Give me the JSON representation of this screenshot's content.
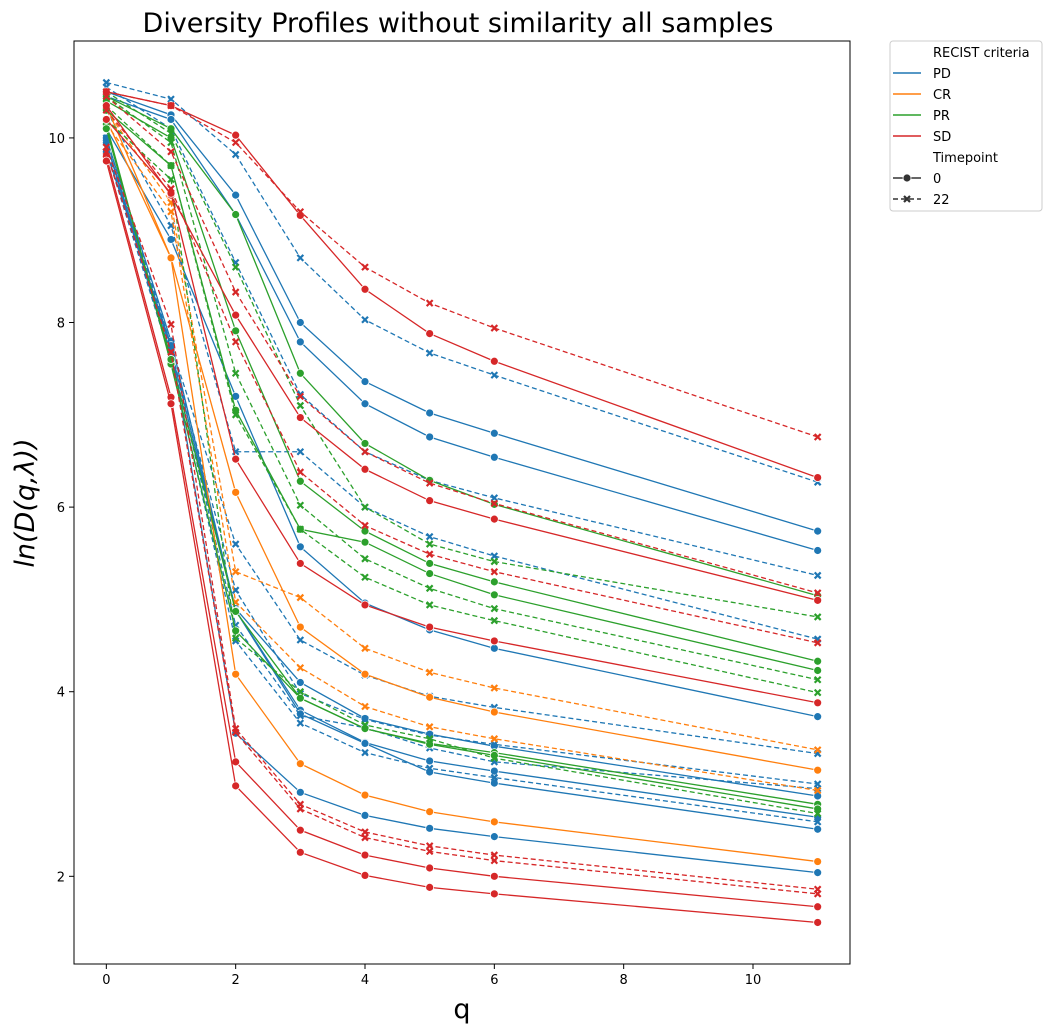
{
  "chart_data": {
    "type": "line",
    "title": "Diversity Profiles without similarity all samples",
    "xlabel": "q",
    "ylabel": "ln(D(q,λ))",
    "xlim": [
      -0.5,
      11.5
    ],
    "ylim": [
      1.05,
      11.05
    ],
    "xticks": [
      0,
      2,
      4,
      6,
      8,
      10
    ],
    "yticks": [
      2,
      4,
      6,
      8,
      10
    ],
    "x": [
      0,
      1,
      2,
      3,
      4,
      5,
      6,
      11
    ],
    "colors": {
      "PD": "#1f77b4",
      "CR": "#ff7f0e",
      "PR": "#2ca02c",
      "SD": "#d62728"
    },
    "legend": {
      "hue_title": "RECIST criteria",
      "hue_items": [
        {
          "key": "PD",
          "label": "PD"
        },
        {
          "key": "CR",
          "label": "CR"
        },
        {
          "key": "PR",
          "label": "PR"
        },
        {
          "key": "SD",
          "label": "SD"
        }
      ],
      "style_title": "Timepoint",
      "style_items": [
        {
          "key": "0",
          "label": "0",
          "marker": "circle",
          "dash": "solid"
        },
        {
          "key": "22",
          "label": "22",
          "marker": "x",
          "dash": "dashed"
        }
      ],
      "placement": "outside top-right"
    },
    "series": [
      {
        "name": "PD-0-a",
        "group": "PD",
        "timepoint": "0",
        "values": [
          10.5,
          10.25,
          9.38,
          8.0,
          7.36,
          7.02,
          6.8,
          5.74
        ]
      },
      {
        "name": "PD-0-b",
        "group": "PD",
        "timepoint": "0",
        "values": [
          10.45,
          10.2,
          9.17,
          7.79,
          7.12,
          6.76,
          6.54,
          5.53
        ]
      },
      {
        "name": "PD-0-c",
        "group": "PD",
        "timepoint": "0",
        "values": [
          10.1,
          8.9,
          7.2,
          5.57,
          4.96,
          4.67,
          4.47,
          3.73
        ]
      },
      {
        "name": "PD-0-d",
        "group": "PD",
        "timepoint": "0",
        "values": [
          9.95,
          7.6,
          4.9,
          4.1,
          3.71,
          3.54,
          3.41,
          2.87
        ]
      },
      {
        "name": "PD-0-e",
        "group": "PD",
        "timepoint": "0",
        "values": [
          9.95,
          7.7,
          4.88,
          3.8,
          3.45,
          3.25,
          3.14,
          2.64
        ]
      },
      {
        "name": "PD-0-f",
        "group": "PD",
        "timepoint": "0",
        "values": [
          10.0,
          7.8,
          4.88,
          3.76,
          3.44,
          3.13,
          3.01,
          2.51
        ]
      },
      {
        "name": "PD-0-g",
        "group": "PD",
        "timepoint": "0",
        "values": [
          9.85,
          7.75,
          3.55,
          2.91,
          2.66,
          2.52,
          2.43,
          2.04
        ]
      },
      {
        "name": "PD-22-a",
        "group": "PD",
        "timepoint": "22",
        "values": [
          10.6,
          10.42,
          9.82,
          8.7,
          8.03,
          7.67,
          7.43,
          6.27
        ]
      },
      {
        "name": "PD-22-b",
        "group": "PD",
        "timepoint": "22",
        "values": [
          10.55,
          10.1,
          8.65,
          7.22,
          6.6,
          6.29,
          6.1,
          5.26
        ]
      },
      {
        "name": "PD-22-c",
        "group": "PD",
        "timepoint": "22",
        "values": [
          10.3,
          9.05,
          6.6,
          6.6,
          6.0,
          5.68,
          5.47,
          4.57
        ]
      },
      {
        "name": "PD-22-d",
        "group": "PD",
        "timepoint": "22",
        "values": [
          10.0,
          7.75,
          5.6,
          4.56,
          4.18,
          3.95,
          3.83,
          3.33
        ]
      },
      {
        "name": "PD-22-e",
        "group": "PD",
        "timepoint": "22",
        "values": [
          9.95,
          7.7,
          5.1,
          3.98,
          3.7,
          3.53,
          3.43,
          3.0
        ]
      },
      {
        "name": "PD-22-f",
        "group": "PD",
        "timepoint": "22",
        "values": [
          9.9,
          7.65,
          4.72,
          3.74,
          3.61,
          3.39,
          3.24,
          2.95
        ]
      },
      {
        "name": "PD-22-g",
        "group": "PD",
        "timepoint": "22",
        "values": [
          9.85,
          7.6,
          4.55,
          3.66,
          3.34,
          3.17,
          3.07,
          2.59
        ]
      },
      {
        "name": "CR-0-a",
        "group": "CR",
        "timepoint": "0",
        "values": [
          10.35,
          8.7,
          6.16,
          4.7,
          4.19,
          3.94,
          3.78,
          3.15
        ]
      },
      {
        "name": "CR-0-b",
        "group": "CR",
        "timepoint": "0",
        "values": [
          10.2,
          8.7,
          4.19,
          3.22,
          2.88,
          2.7,
          2.59,
          2.16
        ]
      },
      {
        "name": "CR-22-a",
        "group": "CR",
        "timepoint": "22",
        "values": [
          10.3,
          9.3,
          5.3,
          5.02,
          4.47,
          4.21,
          4.04,
          3.37
        ]
      },
      {
        "name": "CR-22-b",
        "group": "CR",
        "timepoint": "22",
        "values": [
          10.15,
          9.2,
          4.97,
          4.26,
          3.84,
          3.62,
          3.49,
          2.93
        ]
      },
      {
        "name": "PR-0-a",
        "group": "PR",
        "timepoint": "0",
        "values": [
          10.45,
          10.1,
          9.17,
          7.45,
          6.69,
          6.29,
          6.03,
          5.04
        ]
      },
      {
        "name": "PR-0-b",
        "group": "PR",
        "timepoint": "0",
        "values": [
          10.4,
          10.0,
          7.91,
          6.28,
          5.74,
          5.39,
          5.19,
          4.33
        ]
      },
      {
        "name": "PR-0-c",
        "group": "PR",
        "timepoint": "0",
        "values": [
          10.3,
          9.7,
          7.05,
          5.76,
          5.62,
          5.28,
          5.05,
          4.23
        ]
      },
      {
        "name": "PR-0-d",
        "group": "PR",
        "timepoint": "0",
        "values": [
          10.15,
          7.55,
          4.66,
          3.93,
          3.6,
          3.44,
          3.34,
          2.78
        ]
      },
      {
        "name": "PR-0-e",
        "group": "PR",
        "timepoint": "0",
        "values": [
          10.1,
          7.6,
          4.87,
          3.93,
          3.6,
          3.43,
          3.31,
          2.73
        ]
      },
      {
        "name": "PR-22-a",
        "group": "PR",
        "timepoint": "22",
        "values": [
          10.5,
          10.05,
          8.6,
          7.1,
          6.0,
          5.6,
          5.41,
          4.81
        ]
      },
      {
        "name": "PR-22-b",
        "group": "PR",
        "timepoint": "22",
        "values": [
          10.45,
          9.95,
          7.45,
          6.02,
          5.44,
          5.12,
          4.9,
          4.13
        ]
      },
      {
        "name": "PR-22-c",
        "group": "PR",
        "timepoint": "22",
        "values": [
          10.35,
          9.7,
          7.0,
          5.76,
          5.24,
          4.94,
          4.77,
          3.99
        ]
      },
      {
        "name": "PR-22-d",
        "group": "PR",
        "timepoint": "22",
        "values": [
          10.2,
          9.55,
          4.58,
          4.0,
          3.64,
          3.49,
          3.28,
          2.68
        ]
      },
      {
        "name": "SD-0-a",
        "group": "SD",
        "timepoint": "0",
        "values": [
          10.5,
          10.35,
          10.03,
          9.16,
          8.36,
          7.88,
          7.58,
          6.32
        ]
      },
      {
        "name": "SD-0-b",
        "group": "SD",
        "timepoint": "0",
        "values": [
          10.35,
          9.38,
          8.08,
          6.97,
          6.41,
          6.07,
          5.87,
          4.99
        ]
      },
      {
        "name": "SD-0-c",
        "group": "SD",
        "timepoint": "0",
        "values": [
          10.2,
          9.4,
          6.52,
          5.39,
          4.94,
          4.7,
          4.55,
          3.88
        ]
      },
      {
        "name": "SD-0-d",
        "group": "SD",
        "timepoint": "0",
        "values": [
          9.8,
          7.19,
          3.24,
          2.5,
          2.23,
          2.09,
          2.0,
          1.67
        ]
      },
      {
        "name": "SD-0-e",
        "group": "SD",
        "timepoint": "0",
        "values": [
          9.75,
          7.12,
          2.98,
          2.26,
          2.01,
          1.88,
          1.81,
          1.5
        ]
      },
      {
        "name": "SD-22-a",
        "group": "SD",
        "timepoint": "22",
        "values": [
          10.5,
          10.35,
          9.95,
          9.2,
          8.6,
          8.21,
          7.94,
          6.76
        ]
      },
      {
        "name": "SD-22-b",
        "group": "SD",
        "timepoint": "22",
        "values": [
          10.45,
          9.85,
          8.33,
          7.2,
          6.6,
          6.26,
          6.04,
          5.07
        ]
      },
      {
        "name": "SD-22-c",
        "group": "SD",
        "timepoint": "22",
        "values": [
          10.3,
          9.45,
          7.79,
          6.38,
          5.8,
          5.49,
          5.3,
          4.53
        ]
      },
      {
        "name": "SD-22-d",
        "group": "SD",
        "timepoint": "22",
        "values": [
          9.9,
          7.98,
          3.6,
          2.78,
          2.48,
          2.33,
          2.23,
          1.86
        ]
      },
      {
        "name": "SD-22-e",
        "group": "SD",
        "timepoint": "22",
        "values": [
          9.85,
          7.68,
          3.56,
          2.73,
          2.42,
          2.27,
          2.17,
          1.81
        ]
      }
    ]
  }
}
